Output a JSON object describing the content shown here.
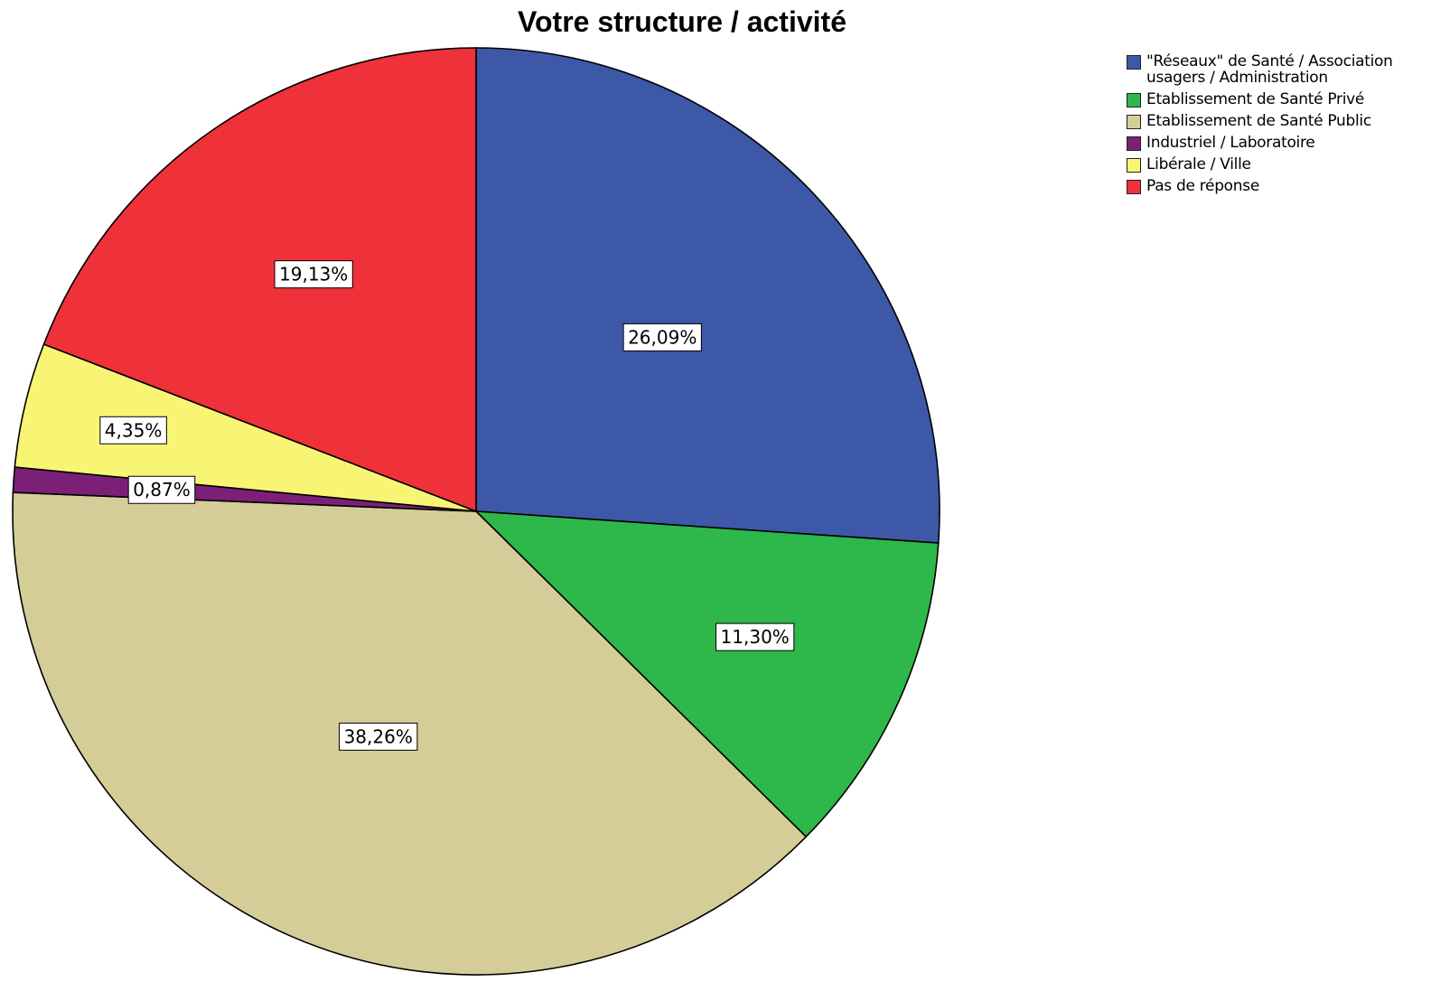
{
  "chart_data": {
    "type": "pie",
    "title": "Votre structure / activité",
    "legend_position": "top-right",
    "categories": [
      "\"Réseaux\" de Santé / Association usagers / Administration",
      "Etablissement de Santé Privé",
      "Etablissement de Santé Public",
      "Industriel / Laboratoire",
      "Libérale / Ville",
      "Pas de réponse"
    ],
    "values": [
      26.09,
      11.3,
      38.26,
      0.87,
      4.35,
      19.13
    ],
    "labels": [
      "26,09%",
      "11,30%",
      "38,26%",
      "0,87%",
      "4,35%",
      "19,13%"
    ],
    "colors": [
      "#3e58a8",
      "#2eb74a",
      "#d4cd98",
      "#7c2077",
      "#f9f574",
      "#ef3139"
    ],
    "start_angle": "12 o'clock",
    "direction": "clockwise"
  }
}
